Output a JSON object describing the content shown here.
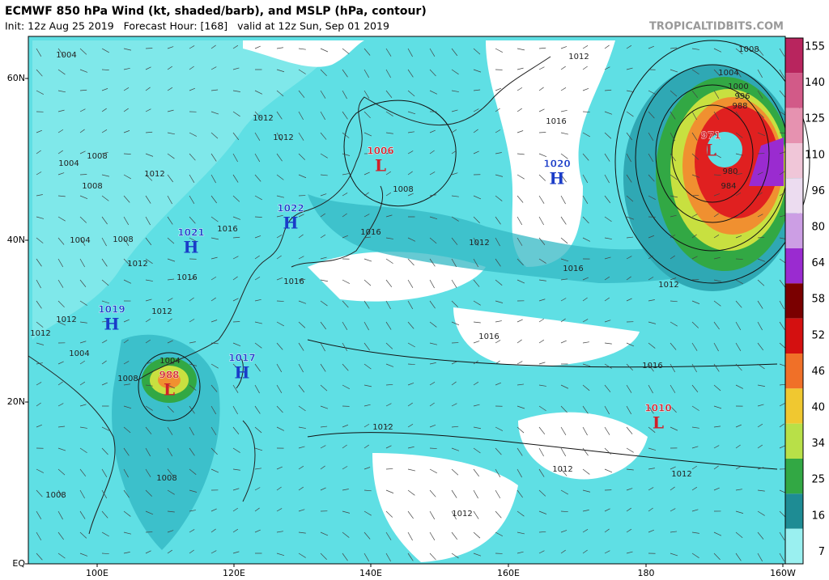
{
  "header": {
    "title": "ECMWF 850 hPa Wind (kt, shaded/barb), and MSLP (hPa, contour)",
    "subtitle": "Init: 12z Aug 25 2019   Forecast Hour: [168]   valid at 12z Sun, Sep 01 2019",
    "watermark": "TROPICALTIDBITS.COM"
  },
  "map": {
    "lat_labels": [
      "60N",
      "40N",
      "20N",
      "EQ"
    ],
    "lon_labels": [
      "100E",
      "120E",
      "140E",
      "160E",
      "180",
      "160W"
    ],
    "centers": [
      {
        "kind": "L",
        "pressure": 1006
      },
      {
        "kind": "H",
        "pressure": 1020
      },
      {
        "kind": "H",
        "pressure": 1022
      },
      {
        "kind": "H",
        "pressure": 1021
      },
      {
        "kind": "H",
        "pressure": 1019
      },
      {
        "kind": "L",
        "pressure": 988
      },
      {
        "kind": "H",
        "pressure": 1017
      },
      {
        "kind": "L",
        "pressure": 1010
      },
      {
        "kind": "L",
        "pressure": 971
      }
    ],
    "contour_labels": [
      1004,
      1008,
      1012,
      1004,
      1000,
      996,
      988,
      1016,
      1012,
      1012,
      1008,
      1016,
      1012,
      1016,
      1012,
      1016,
      1016,
      1012,
      1012,
      1012,
      1012,
      1008,
      1008,
      1004,
      1008,
      1012,
      1016,
      1012,
      1004,
      1008,
      1016,
      1012,
      1004,
      1008,
      1008,
      1016,
      1004,
      1012,
      1012,
      980,
      984
    ]
  },
  "colorbar": {
    "labels": [
      155,
      140,
      125,
      110,
      96,
      80,
      64,
      58,
      52,
      46,
      40,
      34,
      25,
      16,
      7
    ]
  }
}
